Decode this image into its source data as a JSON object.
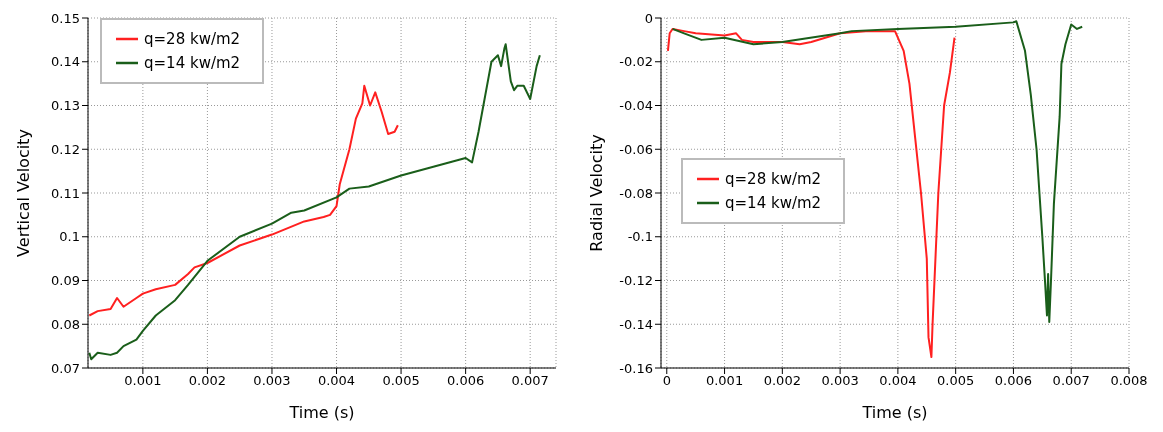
{
  "chart_data": [
    {
      "type": "line",
      "xlabel": "Time (s)",
      "ylabel": "Vertical Velocity",
      "xlim": [
        0.00015,
        0.0074
      ],
      "ylim": [
        0.07,
        0.15
      ],
      "xticks": [
        0.001,
        0.002,
        0.003,
        0.004,
        0.005,
        0.006,
        0.007
      ],
      "yticks": [
        0.07,
        0.08,
        0.09,
        0.1,
        0.11,
        0.12,
        0.13,
        0.14,
        0.15
      ],
      "grid": true,
      "legend": "top left",
      "line_style": "solid",
      "marker": "none",
      "series": [
        {
          "name": "q=28 kw/m2",
          "color": "#ff2020",
          "x": [
            0.00017,
            0.0003,
            0.0005,
            0.0006,
            0.0007,
            0.0009,
            0.001,
            0.0012,
            0.0015,
            0.0017,
            0.0018,
            0.002,
            0.0025,
            0.003,
            0.0035,
            0.0038,
            0.0039,
            0.004,
            0.00405,
            0.0042,
            0.0043,
            0.0044,
            0.00443,
            0.00452,
            0.0046,
            0.0047,
            0.0048,
            0.0049,
            0.00495
          ],
          "values": [
            0.082,
            0.083,
            0.0835,
            0.086,
            0.084,
            0.086,
            0.087,
            0.088,
            0.089,
            0.0915,
            0.093,
            0.094,
            0.098,
            0.1005,
            0.1035,
            0.1045,
            0.105,
            0.107,
            0.112,
            0.12,
            0.127,
            0.1305,
            0.1345,
            0.13,
            0.133,
            0.1285,
            0.1235,
            0.124,
            0.1255
          ]
        },
        {
          "name": "q=14 kw/m2",
          "color": "#1a5e1a",
          "x": [
            0.00017,
            0.0002,
            0.0003,
            0.0005,
            0.0006,
            0.0007,
            0.0009,
            0.001,
            0.0012,
            0.0015,
            0.0017,
            0.002,
            0.0025,
            0.003,
            0.0033,
            0.0035,
            0.004,
            0.0042,
            0.0045,
            0.005,
            0.0055,
            0.006,
            0.0061,
            0.0062,
            0.0063,
            0.0064,
            0.0065,
            0.00655,
            0.0066,
            0.00662,
            0.0067,
            0.00675,
            0.0068,
            0.0069,
            0.007,
            0.0071,
            0.00715
          ],
          "values": [
            0.0735,
            0.072,
            0.0735,
            0.073,
            0.0735,
            0.075,
            0.0765,
            0.0785,
            0.082,
            0.0855,
            0.089,
            0.0945,
            0.1,
            0.103,
            0.1055,
            0.106,
            0.109,
            0.111,
            0.1115,
            0.114,
            0.116,
            0.118,
            0.117,
            0.124,
            0.132,
            0.14,
            0.1415,
            0.139,
            0.143,
            0.144,
            0.1355,
            0.1335,
            0.1345,
            0.1345,
            0.1315,
            0.139,
            0.1415
          ]
        }
      ]
    },
    {
      "type": "line",
      "xlabel": "Time (s)",
      "ylabel": "Radial Velocity",
      "xlim": [
        -0.0001,
        0.008
      ],
      "ylim": [
        -0.16,
        0
      ],
      "xticks": [
        0,
        0.001,
        0.002,
        0.003,
        0.004,
        0.005,
        0.006,
        0.007,
        0.008
      ],
      "yticks": [
        -0.16,
        -0.14,
        -0.12,
        -0.1,
        -0.08,
        -0.06,
        -0.04,
        -0.02,
        0
      ],
      "grid": true,
      "legend": "left",
      "line_style": "solid",
      "marker": "none",
      "series": [
        {
          "name": "q=28 kw/m2",
          "color": "#ff2020",
          "x": [
            2e-05,
            5e-05,
            0.0001,
            0.0003,
            0.0005,
            0.001,
            0.0012,
            0.0013,
            0.0015,
            0.002,
            0.0023,
            0.0025,
            0.003,
            0.0035,
            0.00395,
            0.0041,
            0.0042,
            0.0043,
            0.0044,
            0.0045,
            0.00453,
            0.00458,
            0.0046,
            0.0047,
            0.0048,
            0.0049,
            0.00498
          ],
          "values": [
            -0.015,
            -0.007,
            -0.005,
            -0.006,
            -0.007,
            -0.008,
            -0.007,
            -0.01,
            -0.011,
            -0.011,
            -0.012,
            -0.011,
            -0.007,
            -0.006,
            -0.006,
            -0.015,
            -0.03,
            -0.055,
            -0.08,
            -0.11,
            -0.146,
            -0.155,
            -0.14,
            -0.08,
            -0.04,
            -0.025,
            -0.009
          ]
        },
        {
          "name": "q=14 kw/m2",
          "color": "#1a5e1a",
          "x": [
            0.0001,
            0.0003,
            0.0006,
            0.001,
            0.0015,
            0.002,
            0.003,
            0.0032,
            0.004,
            0.005,
            0.006,
            0.00605,
            0.0062,
            0.0063,
            0.0064,
            0.0065,
            0.00655,
            0.00658,
            0.0066,
            0.00662,
            0.00665,
            0.0067,
            0.0068,
            0.00683,
            0.0069,
            0.007,
            0.0071,
            0.00719
          ],
          "values": [
            -0.005,
            -0.007,
            -0.01,
            -0.009,
            -0.012,
            -0.011,
            -0.007,
            -0.006,
            -0.005,
            -0.004,
            -0.002,
            -0.0015,
            -0.015,
            -0.035,
            -0.06,
            -0.1,
            -0.122,
            -0.136,
            -0.117,
            -0.139,
            -0.12,
            -0.085,
            -0.045,
            -0.021,
            -0.012,
            -0.003,
            -0.005,
            -0.004
          ]
        }
      ]
    }
  ]
}
